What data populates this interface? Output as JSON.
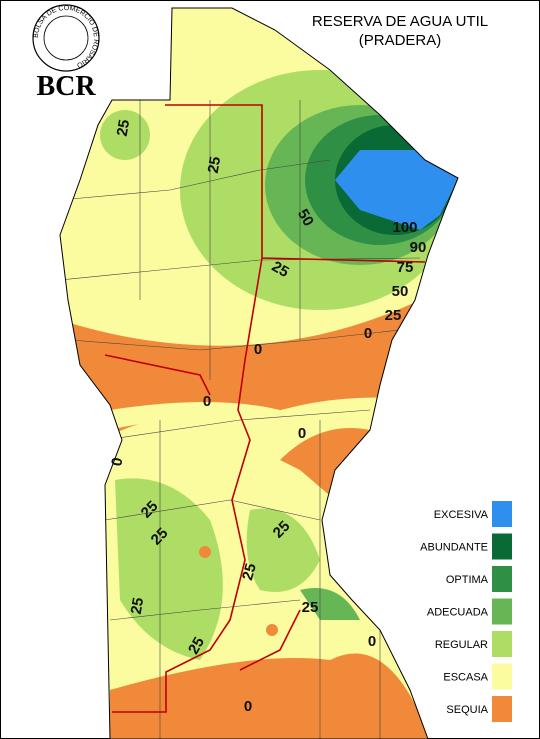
{
  "logo": {
    "ring": "BOLSA DE COMERCIO DE ROSARIO",
    "name": "BCR"
  },
  "title": [
    "RESERVA DE AGUA UTIL",
    "(PRADERA)"
  ],
  "legend": [
    {
      "label": "EXCESIVA",
      "color": "#2f8fef"
    },
    {
      "label": "ABUNDANTE",
      "color": "#0a6a35"
    },
    {
      "label": "OPTIMA",
      "color": "#2f8f45"
    },
    {
      "label": "ADECUADA",
      "color": "#66b655"
    },
    {
      "label": "REGULAR",
      "color": "#aedd66"
    },
    {
      "label": "ESCASA",
      "color": "#fbfba0"
    },
    {
      "label": "SEQUIA",
      "color": "#f08a3a"
    }
  ],
  "contour_labels": [
    "25",
    "25",
    "50",
    "100",
    "90",
    "75",
    "50",
    "25",
    "25",
    "0",
    "0",
    "0",
    "0",
    "0",
    "25",
    "25",
    "25",
    "25",
    "25",
    "25",
    "25",
    "0",
    "0"
  ]
}
